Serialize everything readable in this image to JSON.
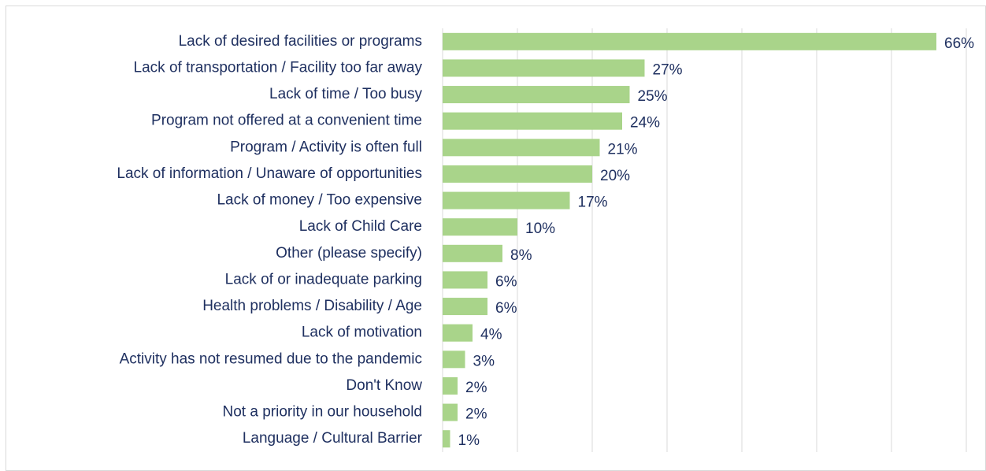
{
  "chart_data": {
    "type": "bar",
    "orientation": "horizontal",
    "categories": [
      "Lack of desired facilities or programs",
      "Lack of transportation / Facility too far away",
      "Lack of time / Too busy",
      "Program not offered at a convenient time",
      "Program / Activity is often full",
      "Lack of information / Unaware of opportunities",
      "Lack of money / Too expensive",
      "Lack of Child Care",
      "Other (please specify)",
      "Lack of or inadequate parking",
      "Health problems / Disability / Age",
      "Lack of motivation",
      "Activity has not resumed due to the pandemic",
      "Don't Know",
      "Not a priority in our household",
      "Language / Cultural Barrier"
    ],
    "values": [
      66,
      27,
      25,
      24,
      21,
      20,
      17,
      10,
      8,
      6,
      6,
      4,
      3,
      2,
      2,
      1
    ],
    "value_labels": [
      "66%",
      "27%",
      "25%",
      "24%",
      "21%",
      "20%",
      "17%",
      "10%",
      "8%",
      "6%",
      "6%",
      "4%",
      "3%",
      "2%",
      "2%",
      "1%"
    ],
    "color": "#a9d48a",
    "xlim": [
      0,
      70
    ],
    "xticks": [
      0,
      10,
      20,
      30,
      40,
      50,
      60,
      70
    ],
    "grid": true
  }
}
